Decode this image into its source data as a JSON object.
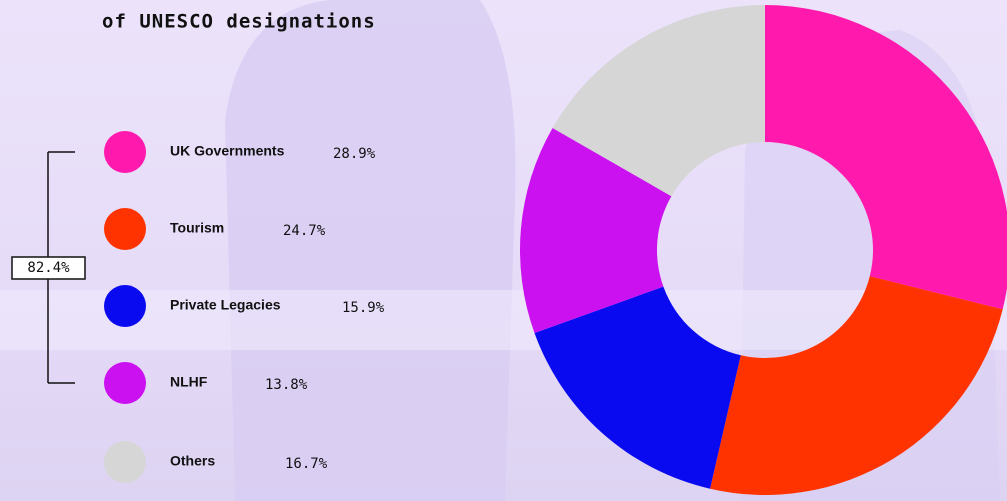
{
  "chart_data": {
    "type": "donut",
    "title": "of UNESCO designations",
    "categories": [
      "UK Governments",
      "Tourism",
      "Private Legacies",
      "NLHF",
      "Others"
    ],
    "values": [
      28.9,
      24.7,
      15.9,
      13.8,
      16.7
    ],
    "value_labels": [
      "28.9%",
      "24.7%",
      "15.9%",
      "13.8%",
      "16.7%"
    ],
    "colors": [
      "#ff1aad",
      "#ff3300",
      "#0a0af0",
      "#cc11f0",
      "#d6d6d6"
    ],
    "bracket": {
      "value": 82.4,
      "label": "82.4%"
    }
  }
}
